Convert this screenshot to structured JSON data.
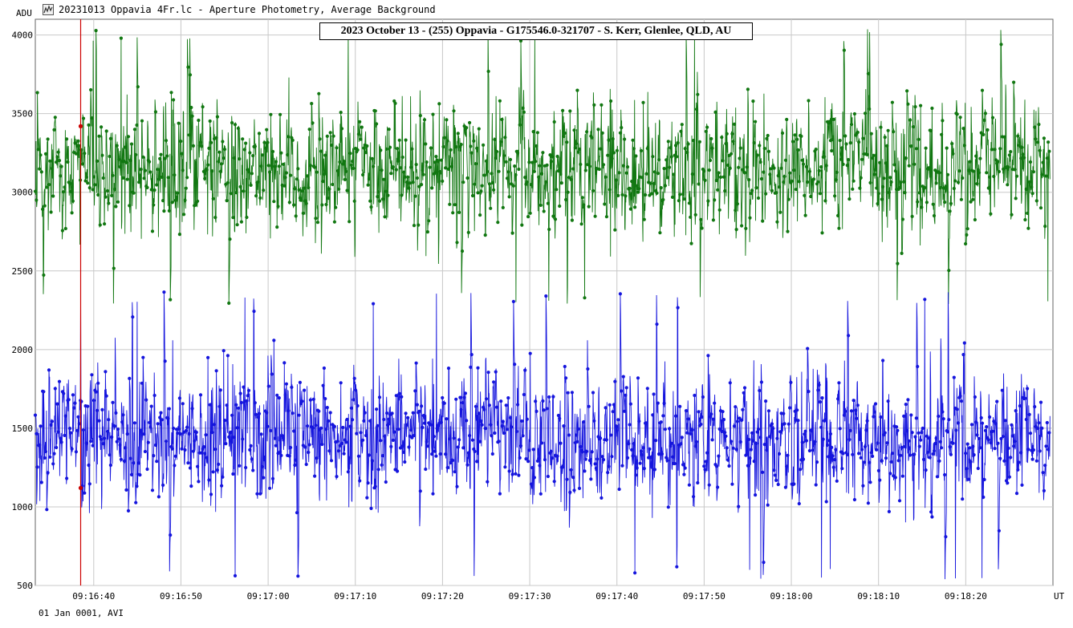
{
  "window": {
    "title": "20231013 Oppavia 4Fr.lc - Aperture Photometry, Average Background",
    "icon": "light-curve-icon"
  },
  "footer": {
    "date_text": "01 Jan 0001, AVI"
  },
  "colors": {
    "target": "#117711",
    "comparison": "#1515dd",
    "cursor": "#cc0000",
    "grid": "#c8c8c8",
    "frame": "#666666"
  },
  "chart_data": {
    "type": "line",
    "title": "2023 October 13 - (255) Oppavia - G175546.0-321707 - S. Kerr, Glenlee, QLD, AU",
    "ylabel": "ADU",
    "xlabel": "UT",
    "ylim": [
      500,
      4100
    ],
    "xlim_seconds": [
      "09:16:33.3",
      "09:18:30.0"
    ],
    "yticks": [
      "500",
      "1000",
      "1500",
      "2000",
      "2500",
      "3000",
      "3500",
      "4000"
    ],
    "xticks": [
      "09:16:40",
      "09:16:50",
      "09:17:00",
      "09:17:10",
      "09:17:20",
      "09:17:30",
      "09:17:40",
      "09:17:50",
      "09:18:00",
      "09:18:10",
      "09:18:20"
    ],
    "grid": true,
    "cursor_time": "09:16:38.5",
    "series": [
      {
        "color": "#117711",
        "mean": 3150,
        "range": [
          2280,
          4040
        ],
        "start_time": "09:16:33.3",
        "frame_interval_s": 0.04,
        "frames": 2910
      },
      {
        "color": "#1515dd",
        "mean": 1450,
        "range": [
          540,
          2370
        ],
        "start_time": "09:16:33.3",
        "frame_interval_s": 0.04,
        "frames": 2910
      }
    ]
  }
}
